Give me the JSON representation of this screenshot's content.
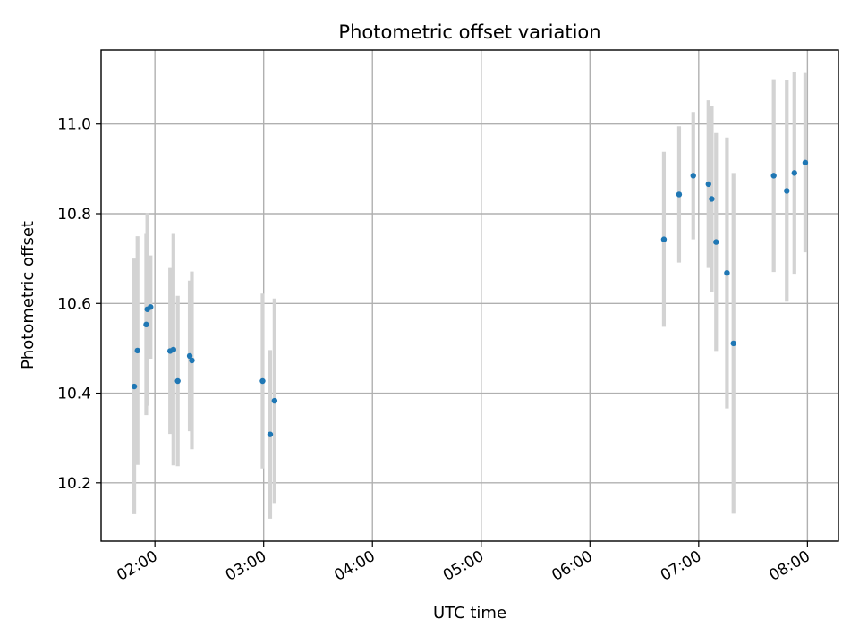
{
  "chart_data": {
    "type": "scatter",
    "title": "Photometric offset variation",
    "xlabel": "UTC time",
    "ylabel": "Photometric offset",
    "x_unit": "UTC time of day (hours)",
    "xlim": [
      1.505,
      8.285
    ],
    "ylim": [
      10.07,
      11.165
    ],
    "x_ticks": [
      {
        "value": 2,
        "label": "02:00"
      },
      {
        "value": 3,
        "label": "03:00"
      },
      {
        "value": 4,
        "label": "04:00"
      },
      {
        "value": 5,
        "label": "05:00"
      },
      {
        "value": 6,
        "label": "06:00"
      },
      {
        "value": 7,
        "label": "07:00"
      },
      {
        "value": 8,
        "label": "08:00"
      }
    ],
    "y_ticks": [
      {
        "value": 10.2,
        "label": "10.2"
      },
      {
        "value": 10.4,
        "label": "10.4"
      },
      {
        "value": 10.6,
        "label": "10.6"
      },
      {
        "value": 10.8,
        "label": "10.8"
      },
      {
        "value": 11.0,
        "label": "11.0"
      }
    ],
    "grid": true,
    "x_tick_rotation": "rotated ~30 degrees",
    "colors": {
      "points": "#1f77b4",
      "errorbars": "#d3d3d3"
    },
    "points": [
      {
        "x": 1.81,
        "y": 10.415,
        "yerr": 0.285
      },
      {
        "x": 1.84,
        "y": 10.495,
        "yerr": 0.255
      },
      {
        "x": 1.92,
        "y": 10.553,
        "yerr": 0.202
      },
      {
        "x": 1.93,
        "y": 10.587,
        "yerr": 0.215
      },
      {
        "x": 1.96,
        "y": 10.592,
        "yerr": 0.115
      },
      {
        "x": 2.14,
        "y": 10.494,
        "yerr": 0.185
      },
      {
        "x": 2.17,
        "y": 10.497,
        "yerr": 0.258
      },
      {
        "x": 2.21,
        "y": 10.427,
        "yerr": 0.19
      },
      {
        "x": 2.32,
        "y": 10.483,
        "yerr": 0.168
      },
      {
        "x": 2.34,
        "y": 10.473,
        "yerr": 0.198
      },
      {
        "x": 2.99,
        "y": 10.427,
        "yerr": 0.195
      },
      {
        "x": 3.06,
        "y": 10.308,
        "yerr": 0.188
      },
      {
        "x": 3.1,
        "y": 10.383,
        "yerr": 0.228
      },
      {
        "x": 6.68,
        "y": 10.743,
        "yerr": 0.195
      },
      {
        "x": 6.82,
        "y": 10.843,
        "yerr": 0.152
      },
      {
        "x": 6.95,
        "y": 10.885,
        "yerr": 0.142
      },
      {
        "x": 7.09,
        "y": 10.866,
        "yerr": 0.187
      },
      {
        "x": 7.12,
        "y": 10.833,
        "yerr": 0.208
      },
      {
        "x": 7.16,
        "y": 10.737,
        "yerr": 0.243
      },
      {
        "x": 7.26,
        "y": 10.668,
        "yerr": 0.302
      },
      {
        "x": 7.32,
        "y": 10.511,
        "yerr": 0.38
      },
      {
        "x": 7.69,
        "y": 10.885,
        "yerr": 0.215
      },
      {
        "x": 7.81,
        "y": 10.851,
        "yerr": 0.247
      },
      {
        "x": 7.88,
        "y": 10.891,
        "yerr": 0.225
      },
      {
        "x": 7.98,
        "y": 10.914,
        "yerr": 0.2
      }
    ]
  }
}
